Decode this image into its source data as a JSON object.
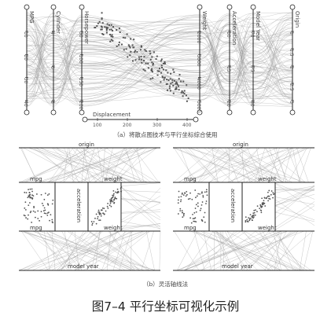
{
  "panel_a": {
    "axes": [
      "MPG",
      "Cylinder",
      "Horsepower",
      "Weight",
      "Acceleration",
      "Model Year",
      "Origin"
    ],
    "ticks": {
      "MPG": [
        "10",
        "20",
        "30",
        "40"
      ],
      "Cylinder": [
        "4",
        "6",
        "8"
      ],
      "Horsepower": [
        "50",
        "100",
        "150",
        "200"
      ],
      "Weight": [
        "2000",
        "3000",
        "4000",
        "5000"
      ],
      "Acceleration": [
        "10",
        "15",
        "20"
      ],
      "Model Year": [
        "70",
        "75",
        "80"
      ],
      "Origin": [
        "1",
        "1.5",
        "2",
        "2.5",
        "3"
      ]
    },
    "displacement": {
      "label": "Displacement",
      "ticks": [
        "100",
        "200",
        "300",
        "400"
      ]
    },
    "caption": "（a）将散点图技术与平行坐标综合使用"
  },
  "panel_b": {
    "left": {
      "labels": {
        "top": "origin",
        "left_upper": "mpg",
        "right_upper": "weight",
        "left_lower": "mpg",
        "mid_vertical": "acceleration",
        "right_lower": "weight",
        "bottom": "model year"
      }
    },
    "right": {
      "labels": {
        "top": "origin",
        "left_upper": "mpg",
        "right_upper": "weight",
        "left_lower": "mpg",
        "mid_vertical": "acceleration",
        "right_lower": "weight",
        "bottom": "model year"
      }
    },
    "caption": "（b）灵活轴线法"
  },
  "figure_title": "图7–4  平行坐标可视化示例",
  "colors": {
    "line": "#9a9a9a",
    "axis": "#222222",
    "point": "#555555",
    "background": "#ffffff"
  }
}
